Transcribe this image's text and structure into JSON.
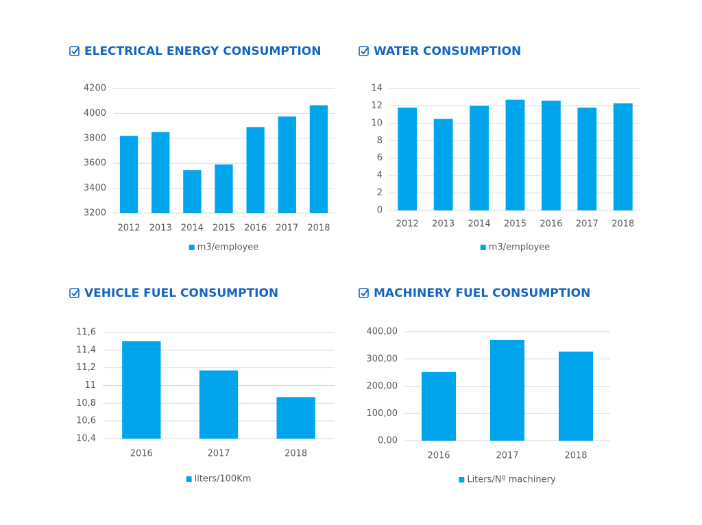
{
  "chart_data": [
    {
      "type": "bar",
      "title": "ELECTRICAL ENERGY CONSUMPTION",
      "categories": [
        "2012",
        "2013",
        "2014",
        "2015",
        "2016",
        "2017",
        "2018"
      ],
      "series": [
        {
          "name": "m3/employee",
          "color": "#00a5ec",
          "values": [
            3820,
            3850,
            3545,
            3590,
            3890,
            3975,
            4065
          ]
        }
      ],
      "ylim": [
        3200,
        4200
      ],
      "yticks": [
        3200,
        3400,
        3600,
        3800,
        4000,
        4200
      ],
      "grid": true,
      "legend": "bottom"
    },
    {
      "type": "bar",
      "title": "WATER CONSUMPTION",
      "categories": [
        "2012",
        "2013",
        "2014",
        "2015",
        "2016",
        "2017",
        "2018"
      ],
      "series": [
        {
          "name": "m3/employee",
          "color": "#00a5ec",
          "values": [
            11.8,
            10.5,
            12.0,
            12.7,
            12.6,
            11.8,
            12.3
          ]
        }
      ],
      "ylim": [
        0,
        14
      ],
      "yticks": [
        0,
        2,
        4,
        6,
        8,
        10,
        12,
        14
      ],
      "grid": true,
      "legend": "bottom"
    },
    {
      "type": "bar",
      "title": "VEHICLE FUEL CONSUMPTION",
      "categories": [
        "2016",
        "2017",
        "2018"
      ],
      "series": [
        {
          "name": "liters/100Km",
          "color": "#00a5ec",
          "values": [
            11.5,
            11.17,
            10.87
          ]
        }
      ],
      "ylim": [
        10.4,
        11.6
      ],
      "yticks": [
        {
          "value": 10.4,
          "label": "10,4"
        },
        {
          "value": 10.6,
          "label": "10,6"
        },
        {
          "value": 10.8,
          "label": "10,8"
        },
        11,
        {
          "value": 11.2,
          "label": "11,2"
        },
        {
          "value": 11.4,
          "label": "11,4"
        },
        {
          "value": 11.6,
          "label": "11,6"
        }
      ],
      "grid": true,
      "legend": "bottom"
    },
    {
      "type": "bar",
      "title": "MACHINERY FUEL CONSUMPTION",
      "categories": [
        "2016",
        "2017",
        "2018"
      ],
      "series": [
        {
          "name": "Liters/Nº machinery",
          "color": "#00a5ec",
          "values": [
            252,
            370,
            327
          ]
        }
      ],
      "ylim": [
        0,
        400
      ],
      "yticks": [
        {
          "value": 0,
          "label": "0,00"
        },
        {
          "value": 100,
          "label": "100,00"
        },
        {
          "value": 200,
          "label": "200,00"
        },
        {
          "value": 300,
          "label": "300,00"
        },
        {
          "value": 400,
          "label": "400,00"
        }
      ],
      "grid": true,
      "legend": "bottom"
    }
  ]
}
